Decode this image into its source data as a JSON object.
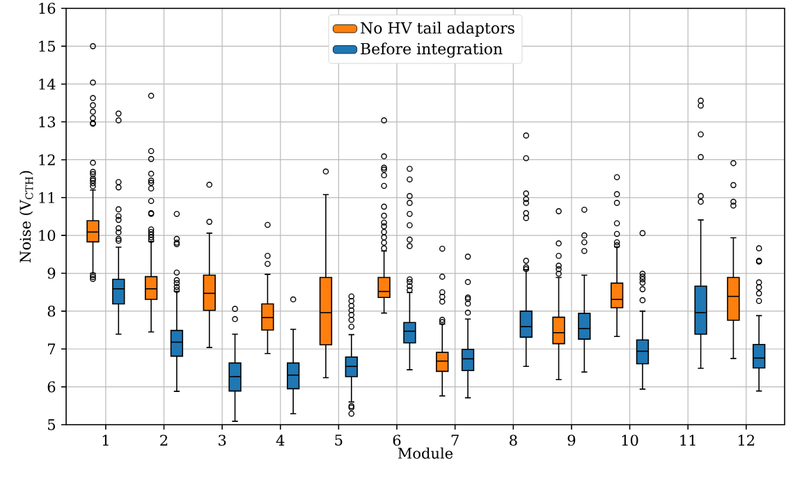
{
  "chart_data": {
    "type": "box",
    "xlabel": "Module",
    "ylabel": "Noise (V$_{CTH}$)",
    "categories": [
      "1",
      "2",
      "3",
      "4",
      "5",
      "6",
      "7",
      "8",
      "9",
      "10",
      "11",
      "12"
    ],
    "ylim": [
      5,
      16
    ],
    "yticks": [
      5,
      6,
      7,
      8,
      9,
      10,
      11,
      12,
      13,
      14,
      15,
      16
    ],
    "grid": true,
    "legend": "top",
    "marker": "circle",
    "series": [
      {
        "name": "No HV tail adaptors",
        "color": "#ff7f0e",
        "boxes": [
          {
            "low": 9.0,
            "q1": 9.83,
            "median": 10.09,
            "q3": 10.39,
            "high": 11.2,
            "outliers": [
              15.0,
              14.04,
              13.63,
              13.44,
              13.27,
              13.1,
              12.97,
              12.95,
              11.92,
              11.68,
              11.62,
              11.5,
              11.45,
              11.38,
              11.3,
              8.95,
              8.9,
              8.85
            ]
          },
          {
            "low": 7.45,
            "q1": 8.31,
            "median": 8.59,
            "q3": 8.91,
            "high": 9.84,
            "outliers": [
              13.69,
              12.23,
              12.02,
              11.63,
              11.45,
              11.39,
              11.24,
              10.91,
              10.59,
              10.57,
              10.16,
              10.09,
              10.02,
              9.95,
              9.88
            ]
          },
          {
            "low": 7.04,
            "q1": 8.02,
            "median": 8.47,
            "q3": 8.95,
            "high": 10.06,
            "outliers": [
              11.34,
              10.36
            ]
          },
          {
            "low": 6.88,
            "q1": 7.5,
            "median": 7.83,
            "q3": 8.19,
            "high": 8.97,
            "outliers": [
              10.28,
              9.46,
              9.25
            ]
          },
          {
            "low": 6.24,
            "q1": 7.11,
            "median": 7.96,
            "q3": 8.89,
            "high": 11.08,
            "outliers": [
              11.69
            ]
          },
          {
            "low": 7.95,
            "q1": 8.36,
            "median": 8.52,
            "q3": 8.89,
            "high": 9.59,
            "outliers": [
              13.04,
              12.09,
              11.79,
              11.74,
              11.59,
              11.31,
              10.76,
              10.52,
              10.34,
              10.24,
              10.09,
              9.95,
              9.81,
              9.66
            ]
          },
          {
            "low": 5.76,
            "q1": 6.41,
            "median": 6.68,
            "q3": 6.91,
            "high": 7.66,
            "outliers": [
              9.65,
              8.91,
              8.5,
              8.38,
              8.25,
              7.77,
              7.71
            ]
          },
          null,
          {
            "low": 6.19,
            "q1": 7.14,
            "median": 7.43,
            "q3": 7.84,
            "high": 8.89,
            "outliers": [
              10.64,
              9.79,
              9.46,
              9.2,
              9.11,
              8.99
            ]
          },
          {
            "low": 7.33,
            "q1": 8.09,
            "median": 8.31,
            "q3": 8.74,
            "high": 9.7,
            "outliers": [
              11.54,
              11.09,
              10.86,
              10.32,
              10.04,
              9.82,
              9.74
            ]
          },
          null,
          {
            "low": 6.75,
            "q1": 7.76,
            "median": 8.39,
            "q3": 8.89,
            "high": 9.94,
            "outliers": [
              11.91,
              11.33,
              10.89,
              10.79
            ]
          }
        ]
      },
      {
        "name": "Before integration",
        "color": "#1f77b4",
        "boxes": [
          {
            "low": 7.39,
            "q1": 8.19,
            "median": 8.59,
            "q3": 8.84,
            "high": 9.69,
            "outliers": [
              13.22,
              13.04,
              11.41,
              11.27,
              10.69,
              10.51,
              10.41,
              10.19,
              10.08,
              9.91,
              9.86
            ]
          },
          {
            "low": 5.88,
            "q1": 6.81,
            "median": 7.18,
            "q3": 7.49,
            "high": 8.52,
            "outliers": [
              10.57,
              9.91,
              9.81,
              9.77,
              9.02,
              8.82,
              8.74,
              8.64,
              8.56
            ]
          },
          {
            "low": 5.09,
            "q1": 5.89,
            "median": 6.27,
            "q3": 6.63,
            "high": 7.39,
            "outliers": [
              8.06,
              7.79
            ]
          },
          {
            "low": 5.29,
            "q1": 5.95,
            "median": 6.31,
            "q3": 6.63,
            "high": 7.52,
            "outliers": [
              8.31
            ]
          },
          {
            "low": 5.6,
            "q1": 6.27,
            "median": 6.54,
            "q3": 6.79,
            "high": 7.38,
            "outliers": [
              8.39,
              8.27,
              8.14,
              8.02,
              7.9,
              7.77,
              7.59,
              5.49,
              5.45,
              5.29
            ]
          },
          {
            "low": 6.45,
            "q1": 7.16,
            "median": 7.47,
            "q3": 7.7,
            "high": 8.49,
            "outliers": [
              11.76,
              11.48,
              11.04,
              10.86,
              10.57,
              10.27,
              9.89,
              9.72,
              8.84,
              8.77,
              8.66,
              8.56
            ]
          },
          {
            "low": 5.71,
            "q1": 6.43,
            "median": 6.74,
            "q3": 6.99,
            "high": 7.79,
            "outliers": [
              9.44,
              8.77,
              8.36,
              8.32,
              8.2,
              7.96
            ]
          },
          {
            "low": 6.54,
            "q1": 7.31,
            "median": 7.59,
            "q3": 8.0,
            "high": 9.09,
            "outliers": [
              12.64,
              12.04,
              11.11,
              10.96,
              10.86,
              10.59,
              10.46,
              9.33,
              9.16,
              9.11
            ]
          },
          {
            "low": 6.39,
            "q1": 7.26,
            "median": 7.54,
            "q3": 7.94,
            "high": 8.95,
            "outliers": [
              10.68,
              10.0,
              9.82,
              9.59
            ]
          },
          {
            "low": 5.94,
            "q1": 6.61,
            "median": 6.94,
            "q3": 7.24,
            "high": 8.0,
            "outliers": [
              10.06,
              8.99,
              8.91,
              8.84,
              8.75,
              8.58,
              8.29
            ]
          },
          {
            "low": 6.49,
            "q1": 7.39,
            "median": 7.96,
            "q3": 8.66,
            "high": 10.41,
            "outliers": [
              13.56,
              13.43,
              12.67,
              12.07,
              11.04,
              10.89
            ]
          },
          {
            "low": 5.89,
            "q1": 6.5,
            "median": 6.76,
            "q3": 7.12,
            "high": 7.88,
            "outliers": [
              9.66,
              9.33,
              9.31,
              8.76,
              8.63,
              8.47,
              8.27
            ]
          }
        ]
      }
    ]
  }
}
